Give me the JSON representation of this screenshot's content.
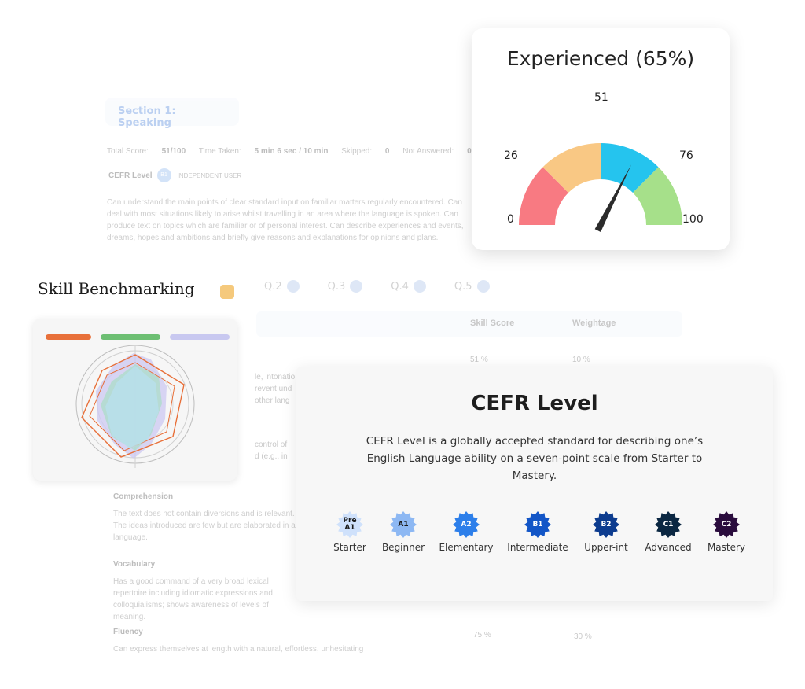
{
  "background": {
    "section_label": "Section 1: Speaking",
    "stats": {
      "total_score_label": "Total Score:",
      "total_score_value": "51/100",
      "time_taken_label": "Time Taken:",
      "time_taken_value": "5 min 6 sec / 10 min",
      "skipped_label": "Skipped:",
      "skipped_value": "0",
      "not_answered_label": "Not Answered:",
      "not_answered_value": "0"
    },
    "cefr_label": "CEFR Level",
    "cefr_badge": "B1",
    "cefr_user": "INDEPENDENT USER",
    "paragraph": "Can understand the main points of clear standard input on familiar matters regularly encountered. Can deal with most situations likely to arise whilst travelling in an area where the language is spoken. Can produce text on topics which are familiar or of personal interest. Can describe experiences and events, dreams, hopes and ambitions and briefly give reasons and explanations for opinions and plans.",
    "tabs": [
      "Q.2",
      "Q.3",
      "Q.4",
      "Q.5"
    ],
    "table_headers": {
      "skill_score": "Skill Score",
      "weightage": "Weightage"
    },
    "row1": {
      "score": "51 %",
      "weight": "10 %"
    },
    "fragments": [
      "le, intonatio",
      "revent und",
      "other lang",
      "control of",
      "d (e.g., in"
    ],
    "sections": [
      {
        "heading": "Comprehension",
        "text": "The text does not contain diversions and is relevant. The ideas introduced are few but are elaborated in a language."
      },
      {
        "heading": "Vocabulary",
        "text": "Has a good command of a very broad lexical repertoire including idiomatic expressions and colloquialisms; shows awareness of levels of meaning."
      },
      {
        "heading": "Fluency",
        "text": "Can express themselves at length with a natural, effortless, unhesitating"
      }
    ],
    "fluency_row": {
      "score": "75 %",
      "weight": "30 %"
    }
  },
  "skill_benchmarking": {
    "title": "Skill Benchmarking",
    "legend_colors": [
      "#e8703a",
      "#6dbf73",
      "#c8c8f0"
    ],
    "swatch_color": "#f5c97c"
  },
  "gauge": {
    "title": "Experienced (65%)",
    "value": 65,
    "ticks": [
      "0",
      "26",
      "51",
      "76",
      "100"
    ],
    "segments": [
      {
        "from": 0,
        "to": 25,
        "color": "#f87a82"
      },
      {
        "from": 25,
        "to": 50,
        "color": "#f9c884"
      },
      {
        "from": 50,
        "to": 75,
        "color": "#25c4ee"
      },
      {
        "from": 75,
        "to": 100,
        "color": "#a6e08a"
      }
    ]
  },
  "cefr": {
    "title": "CEFR Level",
    "description": "CEFR Level is a globally accepted standard for describing one’s English Language ability on a seven-point scale from Starter to Mastery.",
    "levels": [
      {
        "code": "Pre A1",
        "name": "Starter",
        "color": "#cfe1fb",
        "text_color": "#1a1a1a"
      },
      {
        "code": "A1",
        "name": "Beginner",
        "color": "#8db8f3",
        "text_color": "#1a1a1a"
      },
      {
        "code": "A2",
        "name": "Elementary",
        "color": "#2d7fea",
        "text_color": "#ffffff"
      },
      {
        "code": "B1",
        "name": "Intermediate",
        "color": "#1356c7",
        "text_color": "#ffffff"
      },
      {
        "code": "B2",
        "name": "Upper-int",
        "color": "#0d3c8f",
        "text_color": "#ffffff"
      },
      {
        "code": "C1",
        "name": "Advanced",
        "color": "#0b2742",
        "text_color": "#ffffff"
      },
      {
        "code": "C2",
        "name": "Mastery",
        "color": "#2a0c3d",
        "text_color": "#ffffff"
      }
    ]
  }
}
